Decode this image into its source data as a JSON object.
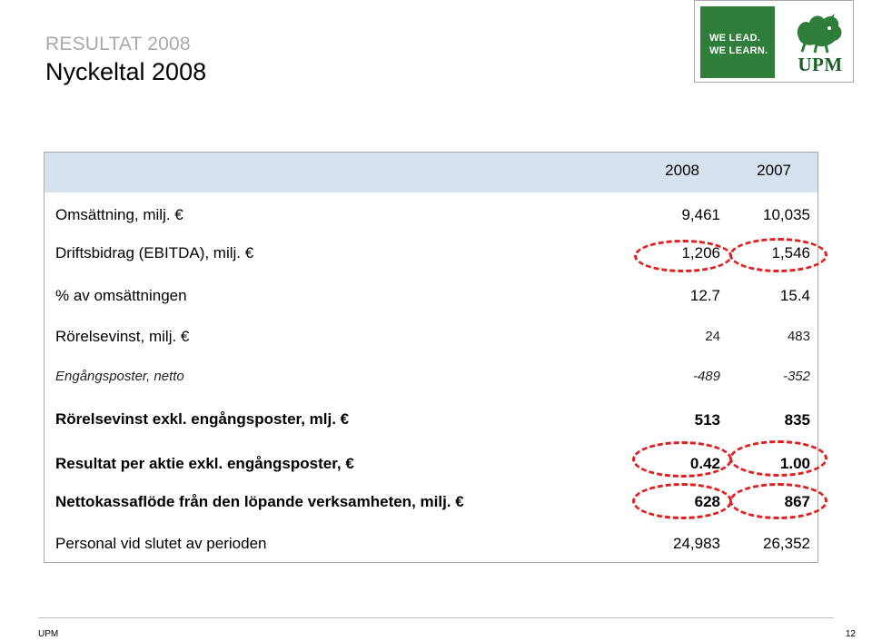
{
  "header": {
    "kicker": "RESULTAT 2008",
    "title": "Nyckeltal 2008"
  },
  "logo": {
    "line1": "WE LEAD.",
    "line2": "WE LEARN.",
    "wordmark": "UPM",
    "icon": "griffin-icon",
    "green": "#2e7d3a"
  },
  "table": {
    "columns": [
      "2008",
      "2007"
    ],
    "rows": [
      {
        "label": "Omsättning, milj. €",
        "v2008": "9,461",
        "v2007": "10,035"
      },
      {
        "label": "Driftsbidrag (EBITDA), milj. €",
        "v2008": "1,206",
        "v2007": "1,546"
      },
      {
        "label": "% av omsättningen",
        "v2008": "12.7",
        "v2007": "15.4"
      },
      {
        "label": "Rörelsevinst, milj. €",
        "v2008": "24",
        "v2007": "483"
      },
      {
        "label": "Engångsposter, netto",
        "v2008": "-489",
        "v2007": "-352"
      },
      {
        "label": "Rörelsevinst exkl. engångsposter, mlj. €",
        "v2008": "513",
        "v2007": "835"
      },
      {
        "label": "Resultat per aktie exkl. engångsposter, €",
        "v2008": "0.42",
        "v2007": "1.00"
      },
      {
        "label": "Nettokassaflöde från den löpande verksamheten, milj. €",
        "v2008": "628",
        "v2007": "867"
      },
      {
        "label": "Personal vid slutet av perioden",
        "v2008": "24,983",
        "v2007": "26,352"
      }
    ],
    "header_band_color": "#d6e3ef",
    "highlight_color": "#e02020"
  },
  "footer": {
    "left": "UPM",
    "page": "12"
  }
}
